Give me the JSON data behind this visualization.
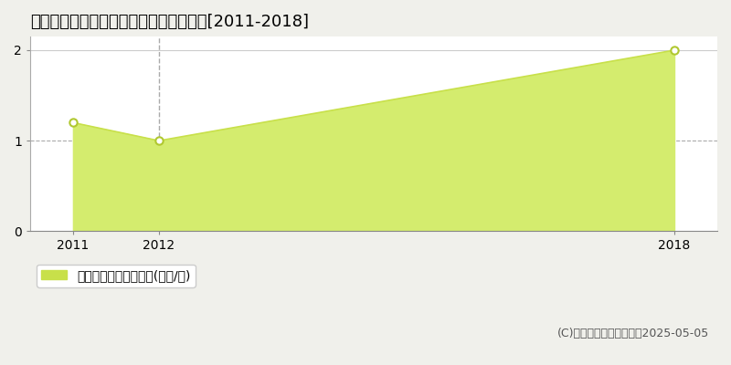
{
  "title": "会津若松市北会津町蟹川　土地価格推移[2011-2018]",
  "years": [
    2011,
    2012,
    2018
  ],
  "values": [
    1.2,
    1.0,
    2.0
  ],
  "line_color": "#c8e04a",
  "fill_color": "#d4ec6e",
  "fill_alpha": 1.0,
  "marker_color": "white",
  "marker_edge_color": "#b0c830",
  "ylim": [
    0,
    2.15
  ],
  "xlim": [
    2010.5,
    2018.5
  ],
  "yticks": [
    0,
    1,
    2
  ],
  "xticks": [
    2011,
    2012,
    2018
  ],
  "vline_x": 2012,
  "hline_y": 1.0,
  "legend_label": "土地価格　平均坪単価(万円/坪)",
  "legend_color": "#c8e04a",
  "copyright": "(C)土地価格ドットコム　2025-05-05",
  "bg_color": "#f0f0eb",
  "plot_bg_color": "#ffffff",
  "title_fontsize": 13,
  "tick_fontsize": 10,
  "legend_fontsize": 10,
  "copyright_fontsize": 9
}
